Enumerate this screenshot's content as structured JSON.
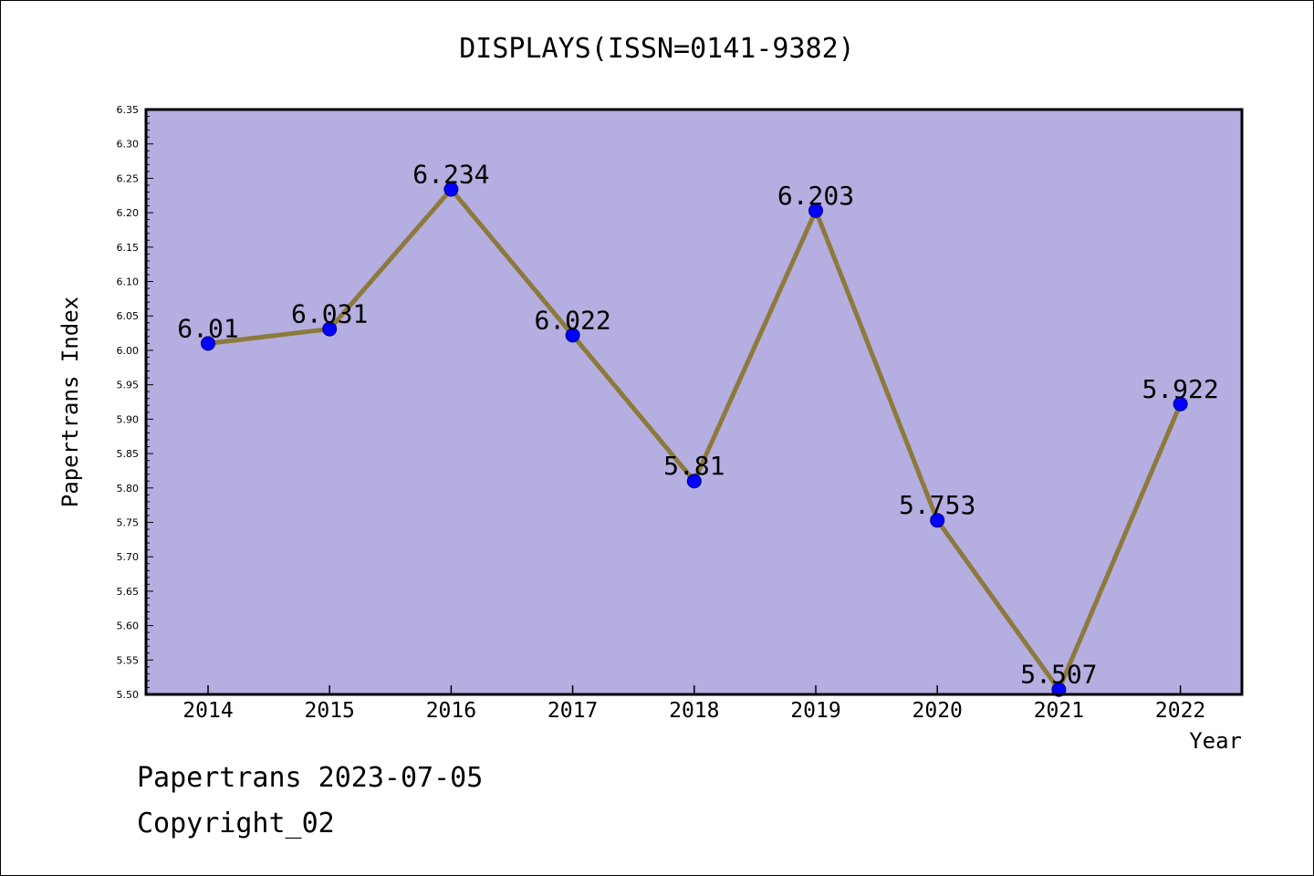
{
  "page": {
    "title": "DISPLAYS(ISSN=0141-9382)",
    "footer_line1": "Papertrans 2023-07-05",
    "footer_line2": "Copyright_02"
  },
  "chart_data": {
    "type": "line",
    "title": "DISPLAYS(ISSN=0141-9382)",
    "xlabel": "Year",
    "ylabel": "Papertrans Index",
    "categories": [
      "2014",
      "2015",
      "2016",
      "2017",
      "2018",
      "2019",
      "2020",
      "2021",
      "2022"
    ],
    "values": [
      6.01,
      6.031,
      6.234,
      6.022,
      5.81,
      6.203,
      5.753,
      5.507,
      5.922
    ],
    "data_labels": [
      "6.01",
      "6.031",
      "6.234",
      "6.022",
      "5.81",
      "6.203",
      "5.753",
      "5.507",
      "5.922"
    ],
    "ylim": [
      5.5,
      6.35
    ],
    "yticks": [
      "5.50",
      "5.55",
      "5.60",
      "5.65",
      "5.70",
      "5.75",
      "5.80",
      "5.85",
      "5.90",
      "5.95",
      "6.00",
      "6.05",
      "6.10",
      "6.15",
      "6.20",
      "6.25",
      "6.30",
      "6.35"
    ],
    "grid": false,
    "colors": {
      "plot_background": "#b5aee0",
      "line": "#8c7a3c",
      "marker": "#0000ff",
      "marker_edge": "#00007a"
    }
  }
}
